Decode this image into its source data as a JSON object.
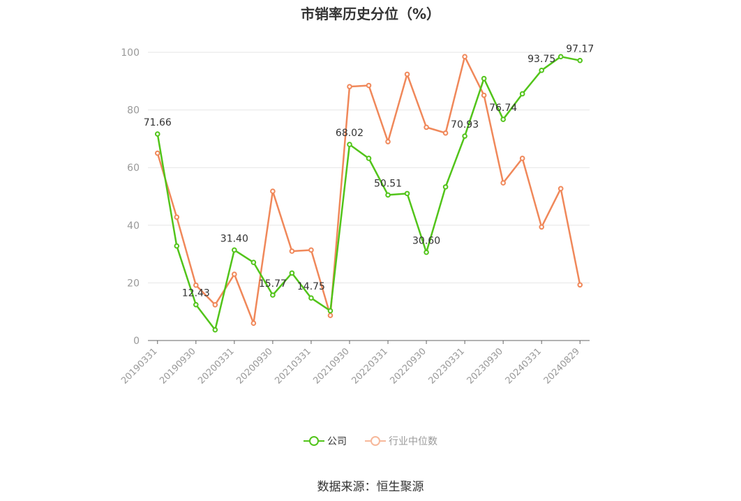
{
  "chart_data": {
    "type": "line",
    "title": "市销率历史分位（%）",
    "source": "数据来源：恒生聚源",
    "ylim": [
      0,
      100
    ],
    "yticks": [
      "0",
      "20",
      "40",
      "60",
      "80",
      "100"
    ],
    "grid": true,
    "legend_position": "bottom",
    "x": [
      "20190331",
      "20190630",
      "20190930",
      "20191231",
      "20200331",
      "20200630",
      "20200930",
      "20201231",
      "20210331",
      "20210630",
      "20210930",
      "20211231",
      "20220331",
      "20220630",
      "20220930",
      "20221231",
      "20230331",
      "20230630",
      "20230930",
      "20231231",
      "20240331",
      "20240630",
      "20240829"
    ],
    "xtick_labels": [
      "20190331",
      "20190930",
      "20200331",
      "20200930",
      "20210331",
      "20210930",
      "20220331",
      "20220930",
      "20230331",
      "20230930",
      "20240331",
      "20240829"
    ],
    "series": [
      {
        "name": "公司",
        "color": "#52c41a",
        "values": [
          71.66,
          32.8,
          12.43,
          3.7,
          31.4,
          27.1,
          15.77,
          23.4,
          14.75,
          10.3,
          68.02,
          63.2,
          50.51,
          51.0,
          30.6,
          53.3,
          70.93,
          90.9,
          76.74,
          85.6,
          93.75,
          98.5,
          97.17
        ],
        "labels": [
          "71.66",
          "",
          "12.43",
          "",
          "31.40",
          "",
          "15.77",
          "",
          "14.75",
          "",
          "68.02",
          "",
          "50.51",
          "",
          "30.60",
          "",
          "70.93",
          "",
          "76.74",
          "",
          "93.75",
          "",
          "97.17"
        ]
      },
      {
        "name": "行业中位数",
        "color": "#f0885a",
        "values": [
          65.0,
          42.8,
          19.2,
          12.4,
          23.0,
          6.0,
          51.8,
          31.0,
          31.4,
          8.7,
          88.1,
          88.5,
          69.0,
          92.4,
          74.0,
          72.0,
          98.5,
          85.1,
          54.7,
          63.2,
          39.4,
          52.7,
          19.3
        ]
      }
    ]
  },
  "legend": {
    "items": [
      {
        "label": "公司",
        "color": "#52c41a"
      },
      {
        "label": "行业中位数",
        "color": "#f0885a"
      }
    ]
  }
}
